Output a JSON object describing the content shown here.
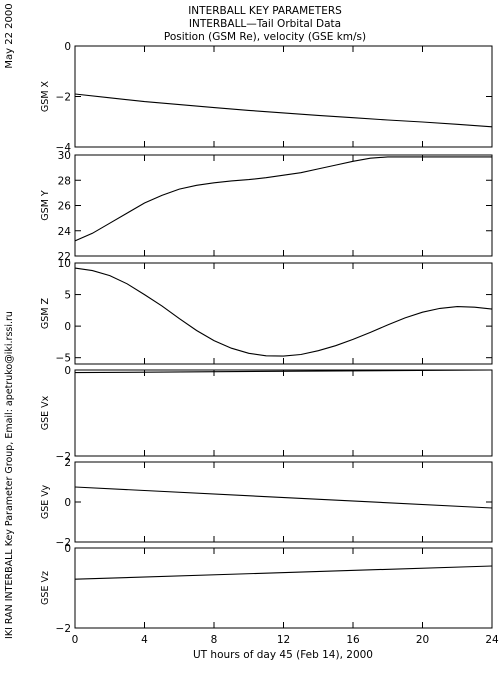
{
  "header": {
    "title_line1": "INTERBALL KEY PARAMETERS",
    "title_line2": "INTERBALL—Tail Orbital Data",
    "title_line3": "Position (GSM Re), velocity (GSE km/s)"
  },
  "side_labels": {
    "date": "May 22 2000",
    "credit": "IKI RAN INTERBALL Key Parameter Group, Email: apetruko@iki.rssi.ru"
  },
  "chart_data": {
    "type": "line",
    "xlabel": "UT hours of day  45 (Feb 14), 2000",
    "xlim": [
      0,
      24
    ],
    "xticks": [
      0,
      4,
      8,
      12,
      16,
      20,
      24
    ],
    "panels": [
      {
        "ylabel": "GSM X",
        "ylim": [
          -4,
          0
        ],
        "yticks": [
          0,
          -2,
          -4
        ],
        "x": [
          0,
          2,
          4,
          6,
          8,
          10,
          12,
          14,
          16,
          18,
          20,
          22,
          24
        ],
        "y": [
          -1.9,
          -2.05,
          -2.2,
          -2.32,
          -2.44,
          -2.55,
          -2.65,
          -2.75,
          -2.84,
          -2.93,
          -3.01,
          -3.1,
          -3.2
        ]
      },
      {
        "ylabel": "GSM Y",
        "ylim": [
          22,
          30
        ],
        "yticks": [
          30,
          28,
          26,
          24,
          22
        ],
        "x": [
          0,
          1,
          2,
          3,
          4,
          5,
          6,
          7,
          8,
          9,
          10,
          11,
          12,
          13,
          14,
          15,
          16,
          17,
          18,
          19,
          20,
          21,
          22,
          23,
          24
        ],
        "y": [
          23.2,
          23.8,
          24.6,
          25.4,
          26.2,
          26.8,
          27.3,
          27.6,
          27.8,
          27.95,
          28.05,
          28.2,
          28.4,
          28.6,
          28.9,
          29.2,
          29.5,
          29.75,
          29.85,
          29.85,
          29.85,
          29.85,
          29.85,
          29.85,
          29.85
        ]
      },
      {
        "ylabel": "GSM Z",
        "ylim": [
          -6,
          10
        ],
        "yticks": [
          10,
          5,
          0,
          -5
        ],
        "x": [
          0,
          1,
          2,
          3,
          4,
          5,
          6,
          7,
          8,
          9,
          10,
          11,
          12,
          13,
          14,
          15,
          16,
          17,
          18,
          19,
          20,
          21,
          22,
          23,
          24
        ],
        "y": [
          9.2,
          8.8,
          8.0,
          6.7,
          5.0,
          3.2,
          1.2,
          -0.7,
          -2.3,
          -3.5,
          -4.3,
          -4.7,
          -4.75,
          -4.5,
          -3.9,
          -3.1,
          -2.1,
          -1.0,
          0.2,
          1.3,
          2.2,
          2.8,
          3.1,
          3.0,
          2.7
        ]
      },
      {
        "ylabel": "GSE Vx",
        "ylim": [
          -2,
          0
        ],
        "yticks": [
          0,
          -2
        ],
        "x": [
          0,
          24
        ],
        "y": [
          -0.06,
          0.0
        ]
      },
      {
        "ylabel": "GSE Vy",
        "ylim": [
          -2,
          2
        ],
        "yticks": [
          2,
          0,
          -2
        ],
        "x": [
          0,
          24
        ],
        "y": [
          0.75,
          -0.3
        ]
      },
      {
        "ylabel": "GSE Vz",
        "ylim": [
          -2,
          0
        ],
        "yticks": [
          0,
          -2
        ],
        "x": [
          0,
          24
        ],
        "y": [
          -0.78,
          -0.45
        ]
      }
    ]
  }
}
